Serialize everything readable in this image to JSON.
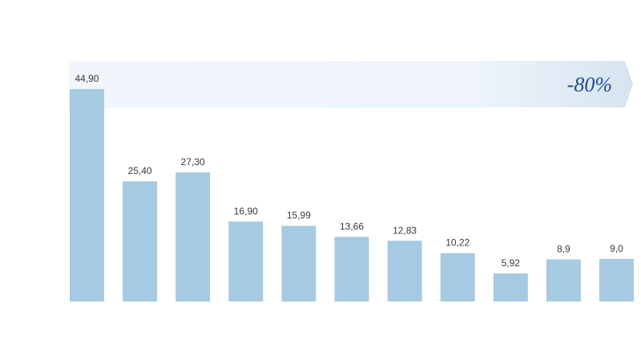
{
  "chart_data": {
    "type": "bar",
    "annotation": "-80%",
    "categories": [
      null,
      null,
      null,
      null,
      null,
      null,
      null,
      null,
      null,
      null,
      null
    ],
    "values": [
      44.9,
      25.4,
      27.3,
      16.9,
      15.99,
      13.66,
      12.83,
      10.22,
      5.92,
      8.9,
      9.0
    ],
    "value_labels": [
      "44,90",
      "25,40",
      "27,30",
      "16,90",
      "15,99",
      "13,66",
      "12,83",
      "10,22",
      "5,92",
      "8,9",
      "9,0"
    ],
    "color": "#a6cae1",
    "ylim": [
      0,
      50
    ]
  }
}
